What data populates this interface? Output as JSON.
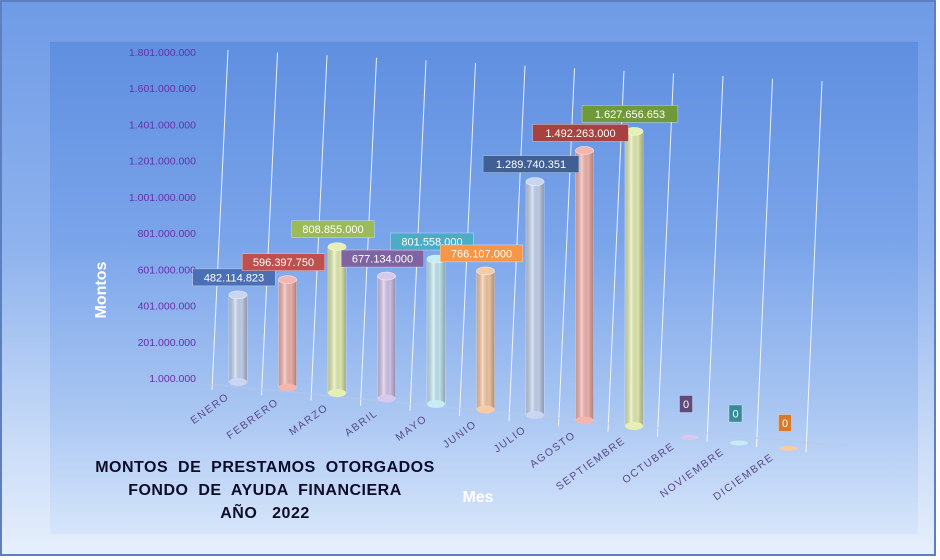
{
  "chart_data": {
    "type": "bar",
    "title_lines": [
      "MONTOS  DE  PRESTAMOS  OTORGADOS",
      "FONDO  DE  AYUDA  FINANCIERA",
      "AÑO   2022"
    ],
    "xlabel": "Mes",
    "ylabel": "Montos",
    "y_ticks": [
      1000000,
      201000000,
      401000000,
      601000000,
      801000000,
      1001000000,
      1201000000,
      1401000000,
      1601000000,
      1801000000
    ],
    "y_tick_labels": [
      "1.000.000",
      "201.000.000",
      "401.000.000",
      "601.000.000",
      "801.000.000",
      "1.001.000.000",
      "1.201.000.000",
      "1.401.000.000",
      "1.601.000.000",
      "1.801.000.000"
    ],
    "ylim": [
      1000000,
      1801000000
    ],
    "categories": [
      "ENERO",
      "FEBRERO",
      "MARZO",
      "ABRIL",
      "MAYO",
      "JUNIO",
      "JULIO",
      "AGOSTO",
      "SEPTIEMBRE",
      "OCTUBRE",
      "NOVIEMBRE",
      "DICIEMBRE"
    ],
    "values": [
      482114823,
      596397750,
      808855000,
      677134000,
      801558000,
      766107000,
      1289740351,
      1492263000,
      1627656653,
      0,
      0,
      0
    ],
    "data_labels": [
      "482.114.823",
      "596.397.750",
      "808.855.000",
      "677.134.000",
      "801.558.000",
      "766.107.000",
      "1.289.740.351",
      "1.492.263.000",
      "1.627.656.653",
      "0",
      "0",
      "0"
    ],
    "bar_colors": [
      "#c8d6f2",
      "#f4b6b0",
      "#e6f0b4",
      "#d7c8ee",
      "#c7ecf6",
      "#f7cba6",
      "#c8d6f2",
      "#f4b6b0",
      "#e6f0b4",
      "#d7c8ee",
      "#c7ecf6",
      "#f7cba6"
    ],
    "label_colors": [
      "#4a6fb5",
      "#c0504d",
      "#9bbb59",
      "#8064a2",
      "#4bacc6",
      "#f79646",
      "#3f5f95",
      "#a8423f",
      "#6f9a3a",
      "#5f4a7a",
      "#3a8a96",
      "#d87a2a"
    ],
    "grid": true
  }
}
